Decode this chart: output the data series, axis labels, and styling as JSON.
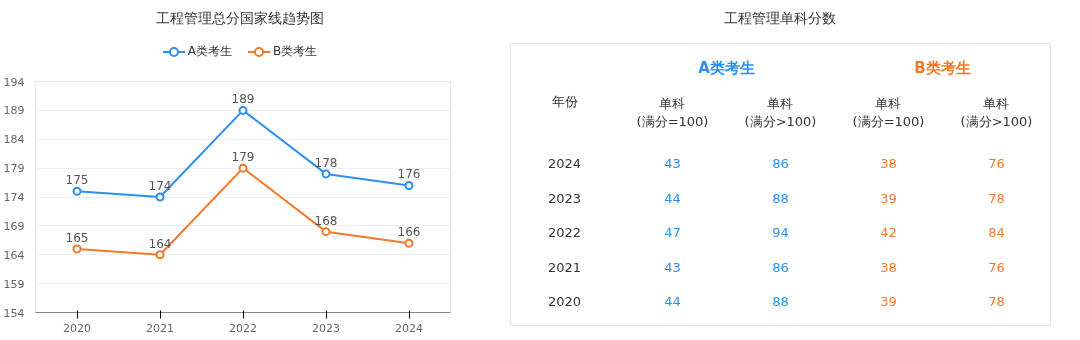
{
  "chart_data": [
    {
      "type": "line",
      "title": "工程管理总分国家线趋势图",
      "categories": [
        "2020",
        "2021",
        "2022",
        "2023",
        "2024"
      ],
      "series": [
        {
          "name": "A类考生",
          "color": "#2b8ff0",
          "values": [
            175,
            174,
            189,
            178,
            176
          ]
        },
        {
          "name": "B类考生",
          "color": "#f07a2b",
          "values": [
            165,
            164,
            179,
            168,
            166
          ]
        }
      ],
      "ylim": [
        154,
        194
      ],
      "yticks": [
        154,
        159,
        164,
        169,
        174,
        179,
        184,
        189,
        194
      ],
      "grid": "y",
      "legend": "top",
      "marker": "circle",
      "data_labels": true
    },
    {
      "type": "heatmap",
      "title": "工程管理单科分数",
      "ylabel": "年份",
      "annotations": [
        "A类考生",
        "B类考生"
      ],
      "categories": [
        "单科\n(满分=100)",
        "单科\n(满分>100)",
        "单科\n(满分=100)",
        "单科\n(满分>100)"
      ],
      "y_categories": [
        "2024",
        "2023",
        "2022",
        "2021",
        "2020"
      ],
      "cells": [
        [
          43,
          86,
          38,
          76
        ],
        [
          44,
          88,
          39,
          78
        ],
        [
          47,
          94,
          42,
          84
        ],
        [
          43,
          86,
          38,
          76
        ],
        [
          44,
          88,
          39,
          78
        ]
      ],
      "colors": [
        "#2b8ff0",
        "#2b8ff0",
        "#f07a2b",
        "#f07a2b"
      ],
      "data_labels": true
    }
  ]
}
